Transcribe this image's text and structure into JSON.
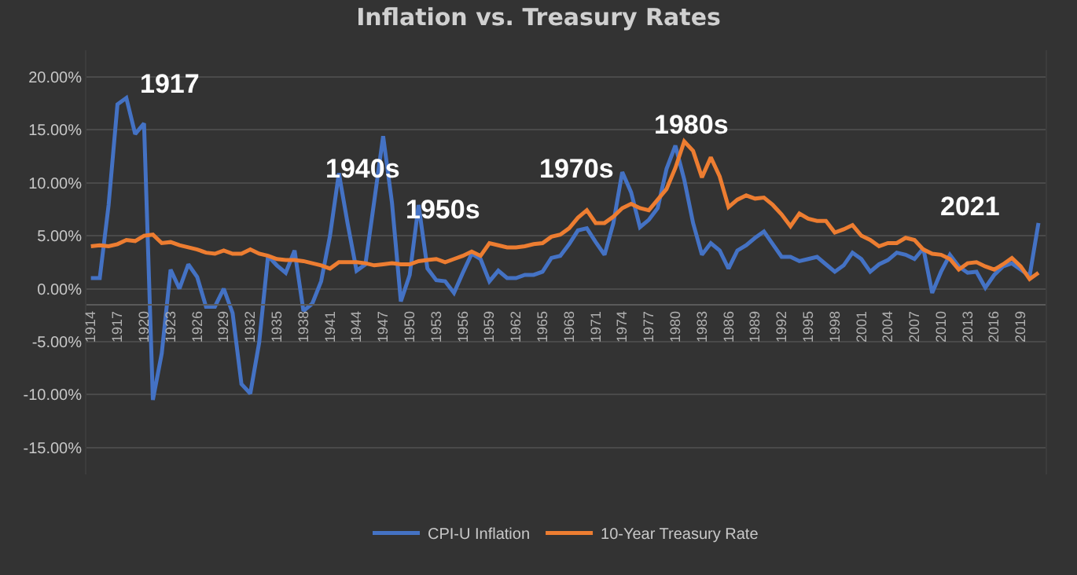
{
  "chart_data": {
    "type": "line",
    "title": "Inflation vs. Treasury Rates",
    "x": [
      1914,
      1915,
      1916,
      1917,
      1918,
      1919,
      1920,
      1921,
      1922,
      1923,
      1924,
      1925,
      1926,
      1927,
      1928,
      1929,
      1930,
      1931,
      1932,
      1933,
      1934,
      1935,
      1936,
      1937,
      1938,
      1939,
      1940,
      1941,
      1942,
      1943,
      1944,
      1945,
      1946,
      1947,
      1948,
      1949,
      1950,
      1951,
      1952,
      1953,
      1954,
      1955,
      1956,
      1957,
      1958,
      1959,
      1960,
      1961,
      1962,
      1963,
      1964,
      1965,
      1966,
      1967,
      1968,
      1969,
      1970,
      1971,
      1972,
      1973,
      1974,
      1975,
      1976,
      1977,
      1978,
      1979,
      1980,
      1981,
      1982,
      1983,
      1984,
      1985,
      1986,
      1987,
      1988,
      1989,
      1990,
      1991,
      1992,
      1993,
      1994,
      1995,
      1996,
      1997,
      1998,
      1999,
      2000,
      2001,
      2002,
      2003,
      2004,
      2005,
      2006,
      2007,
      2008,
      2009,
      2010,
      2011,
      2012,
      2013,
      2014,
      2015,
      2016,
      2017,
      2018,
      2019,
      2020,
      2021
    ],
    "series": [
      {
        "name": "CPI-U Inflation",
        "color": "#4472c4",
        "values": [
          1.0,
          1.0,
          7.9,
          17.4,
          18.0,
          14.6,
          15.6,
          -10.5,
          -6.1,
          1.8,
          0.0,
          2.3,
          1.1,
          -1.7,
          -1.7,
          0.0,
          -2.3,
          -9.0,
          -9.9,
          -5.1,
          3.1,
          2.2,
          1.5,
          3.6,
          -2.1,
          -1.4,
          0.7,
          5.0,
          10.9,
          6.1,
          1.7,
          2.3,
          8.3,
          14.4,
          8.1,
          -1.2,
          1.3,
          7.9,
          1.9,
          0.8,
          0.7,
          -0.4,
          1.5,
          3.3,
          2.8,
          0.7,
          1.7,
          1.0,
          1.0,
          1.3,
          1.3,
          1.6,
          2.9,
          3.1,
          4.2,
          5.5,
          5.7,
          4.4,
          3.2,
          6.2,
          11.0,
          9.1,
          5.8,
          6.5,
          7.6,
          11.3,
          13.5,
          10.3,
          6.2,
          3.2,
          4.3,
          3.6,
          1.9,
          3.6,
          4.1,
          4.8,
          5.4,
          4.2,
          3.0,
          3.0,
          2.6,
          2.8,
          3.0,
          2.3,
          1.6,
          2.2,
          3.4,
          2.8,
          1.6,
          2.3,
          2.7,
          3.4,
          3.2,
          2.8,
          3.8,
          -0.4,
          1.6,
          3.2,
          2.1,
          1.5,
          1.6,
          0.1,
          1.3,
          2.1,
          2.4,
          1.8,
          1.2,
          6.2
        ]
      },
      {
        "name": "10-Year Treasury Rate",
        "color": "#ed7d31",
        "values": [
          4.0,
          4.1,
          4.0,
          4.2,
          4.6,
          4.5,
          5.0,
          5.1,
          4.3,
          4.4,
          4.1,
          3.9,
          3.7,
          3.4,
          3.3,
          3.6,
          3.3,
          3.3,
          3.7,
          3.3,
          3.1,
          2.8,
          2.7,
          2.7,
          2.6,
          2.4,
          2.2,
          1.9,
          2.5,
          2.5,
          2.5,
          2.4,
          2.2,
          2.3,
          2.4,
          2.3,
          2.3,
          2.6,
          2.7,
          2.8,
          2.5,
          2.8,
          3.1,
          3.5,
          3.1,
          4.3,
          4.1,
          3.9,
          3.9,
          4.0,
          4.2,
          4.3,
          4.9,
          5.1,
          5.7,
          6.7,
          7.4,
          6.2,
          6.2,
          6.8,
          7.6,
          8.0,
          7.6,
          7.4,
          8.4,
          9.4,
          11.4,
          13.9,
          13.0,
          10.5,
          12.4,
          10.6,
          7.7,
          8.4,
          8.8,
          8.5,
          8.6,
          7.9,
          7.0,
          5.9,
          7.1,
          6.6,
          6.4,
          6.4,
          5.3,
          5.6,
          6.0,
          5.0,
          4.6,
          4.0,
          4.3,
          4.3,
          4.8,
          4.6,
          3.7,
          3.3,
          3.2,
          2.8,
          1.8,
          2.4,
          2.5,
          2.1,
          1.8,
          2.3,
          2.9,
          2.1,
          0.9,
          1.5
        ]
      }
    ],
    "xlim": [
      1913.5,
      2021.8
    ],
    "xticks": [
      1914,
      1917,
      1920,
      1923,
      1926,
      1929,
      1932,
      1935,
      1938,
      1941,
      1944,
      1947,
      1950,
      1953,
      1956,
      1959,
      1962,
      1965,
      1968,
      1971,
      1974,
      1977,
      1980,
      1983,
      1986,
      1989,
      1992,
      1995,
      1998,
      2001,
      2004,
      2007,
      2010,
      2013,
      2016,
      2019
    ],
    "ylim": [
      -17.5,
      22.5
    ],
    "yticks": [
      {
        "value": -15,
        "label": "-15.00%"
      },
      {
        "value": -10,
        "label": "-10.00%"
      },
      {
        "value": -5,
        "label": "-5.00%"
      },
      {
        "value": 0,
        "label": "0.00%"
      },
      {
        "value": 5,
        "label": "5.00%"
      },
      {
        "value": 10,
        "label": "10.00%"
      },
      {
        "value": 15,
        "label": "15.00%"
      },
      {
        "value": 20,
        "label": "20.00%"
      }
    ],
    "grid": "y",
    "legend": "bottom",
    "marker": "none",
    "line_style": "solid",
    "annotations": [
      "1917",
      "1940s",
      "1950s",
      "1970s",
      "1980s",
      "2021"
    ]
  }
}
